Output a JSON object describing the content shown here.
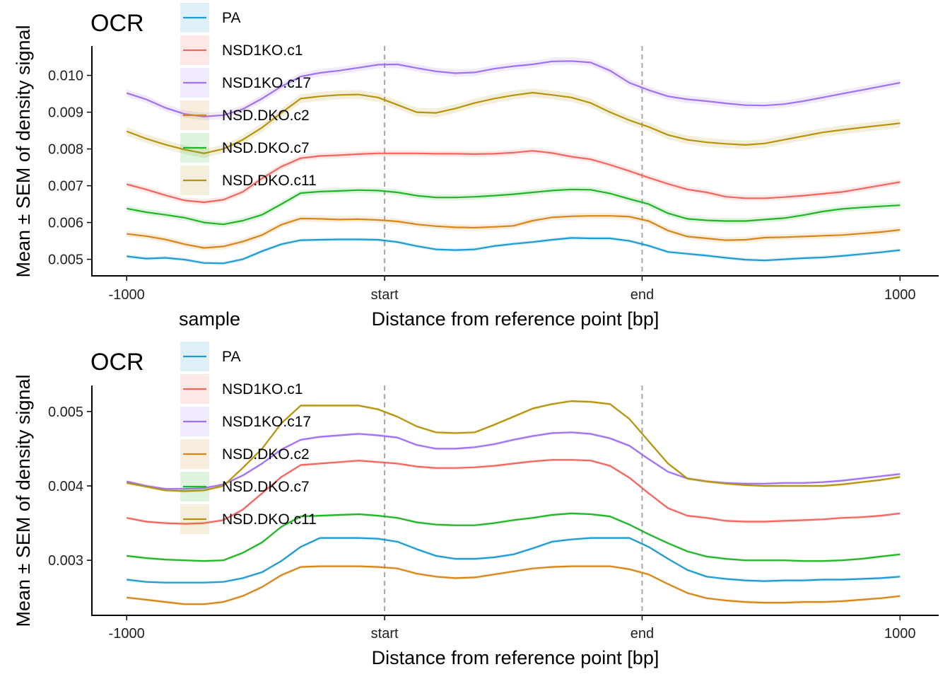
{
  "chart_data": [
    {
      "type": "line",
      "title": "OCR",
      "xlabel": "Distance from reference point [bp]",
      "ylabel": "Mean ± SEM of density signal",
      "legend_title": "",
      "x": [
        -1000,
        -950,
        -900,
        -850,
        -800,
        -750,
        -700,
        -650,
        -600,
        -550,
        -500,
        -450,
        -400,
        -350,
        -300,
        -250,
        -200,
        -150,
        -100,
        -50,
        0,
        50,
        100,
        150,
        200,
        250,
        300,
        350,
        400,
        450,
        500,
        550,
        600,
        650,
        700,
        750,
        800,
        850,
        900,
        950,
        1000
      ],
      "xticks": [
        -1000,
        -333,
        333,
        1000
      ],
      "xtick_labels": [
        "-1000",
        "start",
        "end",
        "1000"
      ],
      "vlines": [
        -333,
        333
      ],
      "xlim": [
        -1090,
        1100
      ],
      "ylim": [
        0.00455,
        0.0108
      ],
      "yticks": [
        0.005,
        0.006,
        0.007,
        0.008,
        0.009,
        0.01
      ],
      "ytick_labels": [
        "0.005",
        "0.006",
        "0.007",
        "0.008",
        "0.009",
        "0.010"
      ],
      "grid": false,
      "legend_position": "top-left",
      "series": [
        {
          "name": "PA",
          "color": "#1F9BD0",
          "sem": 5e-05,
          "values": [
            0.00508,
            0.00502,
            0.00504,
            0.00499,
            0.0049,
            0.00489,
            0.005,
            0.00522,
            0.00541,
            0.00552,
            0.00553,
            0.00554,
            0.00554,
            0.00553,
            0.00547,
            0.00536,
            0.00527,
            0.00525,
            0.00527,
            0.00536,
            0.00542,
            0.00547,
            0.00553,
            0.00558,
            0.00557,
            0.00557,
            0.0055,
            0.00537,
            0.0052,
            0.00515,
            0.0051,
            0.00504,
            0.00499,
            0.00497,
            0.005,
            0.00503,
            0.00505,
            0.00509,
            0.00514,
            0.00519,
            0.00525
          ]
        },
        {
          "name": "NSD1KO.c1",
          "color": "#F2665F",
          "sem": 8e-05,
          "values": [
            0.00704,
            0.0069,
            0.00674,
            0.0066,
            0.00655,
            0.00662,
            0.00683,
            0.0072,
            0.00752,
            0.00775,
            0.00781,
            0.00783,
            0.00786,
            0.00788,
            0.00788,
            0.00788,
            0.00787,
            0.00787,
            0.00786,
            0.00787,
            0.0079,
            0.00795,
            0.00789,
            0.00779,
            0.00772,
            0.00757,
            0.0074,
            0.00722,
            0.00705,
            0.0069,
            0.00682,
            0.0067,
            0.00666,
            0.00666,
            0.00669,
            0.00673,
            0.00678,
            0.00683,
            0.00692,
            0.00701,
            0.0071
          ]
        },
        {
          "name": "NSD1KO.c17",
          "color": "#A071F2",
          "sem": 0.0001,
          "values": [
            0.00952,
            0.00935,
            0.00912,
            0.00895,
            0.00888,
            0.00892,
            0.00908,
            0.00937,
            0.0097,
            0.00997,
            0.01007,
            0.01013,
            0.01021,
            0.01029,
            0.0103,
            0.0102,
            0.01011,
            0.01006,
            0.01008,
            0.01018,
            0.01025,
            0.0103,
            0.01038,
            0.01039,
            0.01035,
            0.01013,
            0.0098,
            0.0096,
            0.00943,
            0.00935,
            0.0093,
            0.00924,
            0.00919,
            0.00918,
            0.00922,
            0.0093,
            0.0094,
            0.0095,
            0.0096,
            0.0097,
            0.0098
          ]
        },
        {
          "name": "NSD.DKO.c2",
          "color": "#D7861A",
          "sem": 8e-05,
          "values": [
            0.00569,
            0.00563,
            0.00554,
            0.00541,
            0.00531,
            0.00535,
            0.00548,
            0.00566,
            0.00594,
            0.00611,
            0.0061,
            0.00608,
            0.00609,
            0.00607,
            0.00603,
            0.00595,
            0.0059,
            0.00587,
            0.00586,
            0.00588,
            0.00591,
            0.00605,
            0.00614,
            0.00617,
            0.00618,
            0.00618,
            0.00616,
            0.00604,
            0.00578,
            0.00562,
            0.00557,
            0.00552,
            0.00553,
            0.00559,
            0.0056,
            0.00562,
            0.00564,
            0.00566,
            0.0057,
            0.00574,
            0.0058
          ]
        },
        {
          "name": "NSD.DKO.c7",
          "color": "#23B428",
          "sem": 8e-05,
          "values": [
            0.00638,
            0.00628,
            0.00621,
            0.00613,
            0.006,
            0.00595,
            0.00605,
            0.00621,
            0.0065,
            0.0068,
            0.00684,
            0.00686,
            0.00688,
            0.00687,
            0.00682,
            0.00673,
            0.00668,
            0.00668,
            0.0067,
            0.00673,
            0.00677,
            0.00682,
            0.00687,
            0.0069,
            0.00689,
            0.00679,
            0.00664,
            0.0065,
            0.00625,
            0.0061,
            0.00606,
            0.00604,
            0.00604,
            0.00608,
            0.00612,
            0.0062,
            0.0063,
            0.00637,
            0.00641,
            0.00644,
            0.00647
          ]
        },
        {
          "name": "NSD.DKO.c11",
          "color": "#B5950D",
          "sem": 0.00012,
          "values": [
            0.00848,
            0.00828,
            0.00812,
            0.00798,
            0.00788,
            0.008,
            0.00825,
            0.00858,
            0.00898,
            0.00937,
            0.00943,
            0.00947,
            0.00948,
            0.0094,
            0.0092,
            0.009,
            0.00898,
            0.0091,
            0.00925,
            0.00937,
            0.00946,
            0.00953,
            0.00947,
            0.0094,
            0.00925,
            0.009,
            0.00878,
            0.0086,
            0.00838,
            0.00825,
            0.00818,
            0.00814,
            0.00811,
            0.00815,
            0.00825,
            0.00835,
            0.00845,
            0.00852,
            0.00858,
            0.00864,
            0.0087
          ]
        }
      ]
    },
    {
      "type": "line",
      "title": "OCR",
      "xlabel": "Distance from reference point [bp]",
      "ylabel": "Mean ± SEM of density signal",
      "legend_title": "sample",
      "x": [
        -1000,
        -950,
        -900,
        -850,
        -800,
        -750,
        -700,
        -650,
        -600,
        -550,
        -500,
        -450,
        -400,
        -350,
        -300,
        -250,
        -200,
        -150,
        -100,
        -50,
        0,
        50,
        100,
        150,
        200,
        250,
        300,
        350,
        400,
        450,
        500,
        550,
        600,
        650,
        700,
        750,
        800,
        850,
        900,
        950,
        1000
      ],
      "xticks": [
        -1000,
        -333,
        333,
        1000
      ],
      "xtick_labels": [
        "-1000",
        "start",
        "end",
        "1000"
      ],
      "vlines": [
        -333,
        333
      ],
      "xlim": [
        -1090,
        1100
      ],
      "ylim": [
        0.00226,
        0.00535
      ],
      "yticks": [
        0.003,
        0.004,
        0.005
      ],
      "ytick_labels": [
        "0.003",
        "0.004",
        "0.005"
      ],
      "grid": false,
      "legend_position": "top-left",
      "series": [
        {
          "name": "PA",
          "color": "#1F9BD0",
          "sem": 2e-05,
          "values": [
            0.00274,
            0.00271,
            0.0027,
            0.0027,
            0.0027,
            0.00271,
            0.00276,
            0.00284,
            0.00299,
            0.00318,
            0.0033,
            0.0033,
            0.0033,
            0.00329,
            0.00325,
            0.00315,
            0.00306,
            0.00302,
            0.00302,
            0.00304,
            0.00308,
            0.00316,
            0.00325,
            0.00328,
            0.0033,
            0.0033,
            0.0033,
            0.00318,
            0.00302,
            0.00287,
            0.00278,
            0.00275,
            0.00273,
            0.00272,
            0.00273,
            0.00273,
            0.00274,
            0.00274,
            0.00275,
            0.00276,
            0.00278
          ]
        },
        {
          "name": "NSD1KO.c1",
          "color": "#F2665F",
          "sem": 2e-05,
          "values": [
            0.00357,
            0.00352,
            0.0035,
            0.00349,
            0.0035,
            0.00354,
            0.00368,
            0.0039,
            0.00412,
            0.00428,
            0.0043,
            0.00432,
            0.00434,
            0.00432,
            0.0043,
            0.00426,
            0.00424,
            0.00424,
            0.00425,
            0.00427,
            0.0043,
            0.00433,
            0.00435,
            0.00435,
            0.00434,
            0.00427,
            0.00411,
            0.0039,
            0.0037,
            0.0036,
            0.00357,
            0.00353,
            0.00352,
            0.00352,
            0.00353,
            0.00354,
            0.00355,
            0.00357,
            0.00358,
            0.0036,
            0.00363
          ]
        },
        {
          "name": "NSD1KO.c17",
          "color": "#A071F2",
          "sem": 2e-05,
          "values": [
            0.00406,
            0.004,
            0.00396,
            0.00396,
            0.00397,
            0.00402,
            0.00414,
            0.0043,
            0.00449,
            0.00462,
            0.00466,
            0.00468,
            0.0047,
            0.00468,
            0.00465,
            0.00455,
            0.0045,
            0.0045,
            0.00452,
            0.00456,
            0.00462,
            0.00467,
            0.00471,
            0.00472,
            0.0047,
            0.00464,
            0.00454,
            0.00436,
            0.00419,
            0.0041,
            0.00406,
            0.00404,
            0.00403,
            0.00403,
            0.00404,
            0.00404,
            0.00405,
            0.00407,
            0.0041,
            0.00413,
            0.00416
          ]
        },
        {
          "name": "NSD.DKO.c2",
          "color": "#D7861A",
          "sem": 2e-05,
          "values": [
            0.0025,
            0.00247,
            0.00244,
            0.00241,
            0.00241,
            0.00244,
            0.00252,
            0.00264,
            0.0028,
            0.00291,
            0.00292,
            0.00292,
            0.00292,
            0.00291,
            0.00289,
            0.00282,
            0.00278,
            0.00276,
            0.00277,
            0.00281,
            0.00285,
            0.00289,
            0.00291,
            0.00292,
            0.00292,
            0.00292,
            0.00288,
            0.00281,
            0.00268,
            0.00256,
            0.00249,
            0.00246,
            0.00244,
            0.00243,
            0.00243,
            0.00244,
            0.00244,
            0.00245,
            0.00247,
            0.00249,
            0.00252
          ]
        },
        {
          "name": "NSD.DKO.c7",
          "color": "#23B428",
          "sem": 2e-05,
          "values": [
            0.00306,
            0.00303,
            0.00301,
            0.003,
            0.00299,
            0.003,
            0.0031,
            0.00324,
            0.00345,
            0.00359,
            0.0036,
            0.00361,
            0.00362,
            0.0036,
            0.00357,
            0.00351,
            0.00348,
            0.00347,
            0.00347,
            0.0035,
            0.00354,
            0.00357,
            0.00361,
            0.00363,
            0.00362,
            0.00359,
            0.00348,
            0.00335,
            0.00323,
            0.00312,
            0.00305,
            0.00302,
            0.003,
            0.003,
            0.003,
            0.00299,
            0.00299,
            0.003,
            0.00302,
            0.00305,
            0.00308
          ]
        },
        {
          "name": "NSD.DKO.c11",
          "color": "#B5950D",
          "sem": 2e-05,
          "values": [
            0.00404,
            0.00399,
            0.00394,
            0.00393,
            0.00394,
            0.004,
            0.00424,
            0.0045,
            0.00484,
            0.00508,
            0.00508,
            0.00508,
            0.00508,
            0.00503,
            0.00493,
            0.0048,
            0.00472,
            0.00471,
            0.00472,
            0.00482,
            0.00493,
            0.00504,
            0.0051,
            0.00514,
            0.00513,
            0.0051,
            0.0049,
            0.0046,
            0.0043,
            0.0041,
            0.00406,
            0.00403,
            0.00401,
            0.004,
            0.004,
            0.004,
            0.004,
            0.00402,
            0.00405,
            0.00408,
            0.00412
          ]
        }
      ]
    }
  ]
}
